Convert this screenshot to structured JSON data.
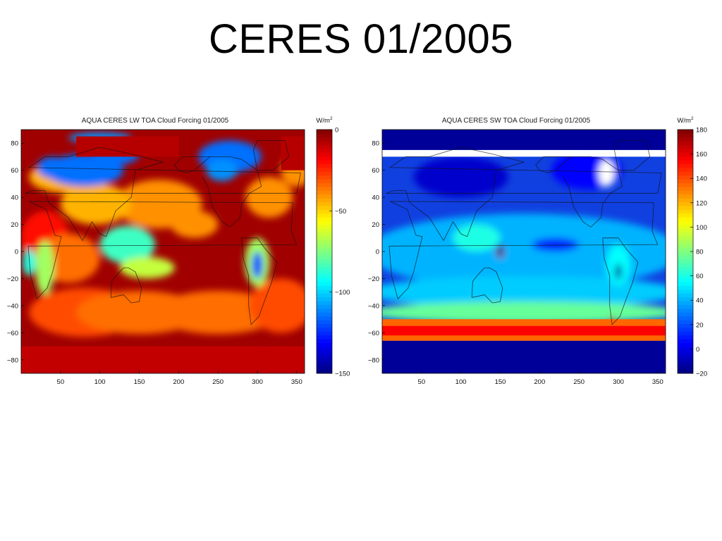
{
  "slide": {
    "title": "CERES 01/2005"
  },
  "chart_data": [
    {
      "type": "heatmap",
      "title": "AQUA CERES LW TOA Cloud Forcing 01/2005",
      "xlabel": "",
      "ylabel": "",
      "x_ticks": [
        50,
        100,
        150,
        200,
        250,
        300,
        350
      ],
      "y_ticks": [
        80,
        60,
        40,
        20,
        0,
        -20,
        -40,
        -60,
        -80
      ],
      "y_tick_labels": [
        "80",
        "60",
        "40",
        "20",
        "0",
        "−20",
        "−40",
        "−60",
        "−80"
      ],
      "xlim": [
        0,
        360
      ],
      "ylim": [
        -90,
        90
      ],
      "colorbar": {
        "unit_base": "W/m",
        "unit_exp": "2",
        "range": [
          -150,
          0
        ],
        "ticks": [
          0,
          -50,
          -100,
          -150
        ],
        "tick_labels": [
          "0",
          "−50",
          "−100",
          "−150"
        ],
        "colormap": "jet"
      },
      "background_color": "#a00000",
      "features": [
        {
          "kind": "ellipse",
          "lon": 30,
          "lat": 10,
          "rlon": 30,
          "rlat": 20,
          "value": -20
        },
        {
          "kind": "ellipse",
          "lon": 60,
          "lat": -5,
          "rlon": 40,
          "rlat": 18,
          "value": -35
        },
        {
          "kind": "ellipse",
          "lon": 80,
          "lat": -45,
          "rlon": 70,
          "rlat": 18,
          "value": -30
        },
        {
          "kind": "ellipse",
          "lon": 150,
          "lat": -45,
          "rlon": 80,
          "rlat": 16,
          "value": -35
        },
        {
          "kind": "ellipse",
          "lon": 250,
          "lat": -45,
          "rlon": 80,
          "rlat": 16,
          "value": -35
        },
        {
          "kind": "ellipse",
          "lon": 330,
          "lat": -40,
          "rlon": 40,
          "rlat": 20,
          "value": -30
        },
        {
          "kind": "ellipse",
          "lon": 175,
          "lat": 35,
          "rlon": 55,
          "rlat": 18,
          "value": -40
        },
        {
          "kind": "ellipse",
          "lon": 95,
          "lat": 35,
          "rlon": 45,
          "rlat": 15,
          "value": -45
        },
        {
          "kind": "ellipse",
          "lon": 315,
          "lat": 40,
          "rlon": 30,
          "rlat": 15,
          "value": -40
        },
        {
          "kind": "ellipse",
          "lon": 220,
          "lat": 20,
          "rlon": 30,
          "rlat": 10,
          "value": -40
        },
        {
          "kind": "ellipse",
          "lon": 60,
          "lat": 55,
          "rlon": 50,
          "rlat": 12,
          "value": -45
        },
        {
          "kind": "ellipse",
          "lon": 350,
          "lat": 60,
          "rlon": 20,
          "rlat": 12,
          "value": -40
        },
        {
          "kind": "ellipse",
          "lon": 135,
          "lat": 5,
          "rlon": 35,
          "rlat": 14,
          "value": -85
        },
        {
          "kind": "ellipse",
          "lon": 160,
          "lat": -12,
          "rlon": 35,
          "rlat": 8,
          "value": -65
        },
        {
          "kind": "ellipse",
          "lon": 300,
          "lat": -8,
          "rlon": 16,
          "rlat": 18,
          "value": -70
        },
        {
          "kind": "ellipse",
          "lon": 300,
          "lat": -10,
          "rlon": 7,
          "rlat": 10,
          "value": -120
        },
        {
          "kind": "ellipse",
          "lon": 30,
          "lat": -12,
          "rlon": 12,
          "rlat": 20,
          "value": -70
        },
        {
          "kind": "ellipse",
          "lon": 10,
          "lat": -8,
          "rlon": 8,
          "rlat": 10,
          "value": -90
        },
        {
          "kind": "ellipse",
          "lon": 80,
          "lat": 60,
          "rlon": 50,
          "rlat": 12,
          "value": -115
        },
        {
          "kind": "ellipse",
          "lon": 40,
          "lat": 62,
          "rlon": 20,
          "rlat": 8,
          "value": -115
        },
        {
          "kind": "ellipse",
          "lon": 120,
          "lat": 72,
          "rlon": 30,
          "rlat": 8,
          "value": -115
        },
        {
          "kind": "ellipse",
          "lon": 265,
          "lat": 70,
          "rlon": 40,
          "rlat": 12,
          "value": -115
        },
        {
          "kind": "ellipse",
          "lon": 255,
          "lat": 60,
          "rlon": 20,
          "rlat": 8,
          "value": -110
        },
        {
          "kind": "ellipse",
          "lon": 100,
          "lat": 84,
          "rlon": 40,
          "rlat": 4,
          "value": -110
        },
        {
          "kind": "ellipse",
          "lon": 180,
          "lat": -85,
          "rlon": 22,
          "rlat": 3,
          "value": -115
        },
        {
          "kind": "ellipse",
          "lon": 305,
          "lat": -77,
          "rlon": 6,
          "rlat": 3,
          "value": -110
        },
        {
          "kind": "rect",
          "lon0": 0,
          "lon1": 360,
          "lat0": -90,
          "lat1": -70,
          "value": -10
        },
        {
          "kind": "rect",
          "lon0": 70,
          "lon1": 200,
          "lat0": 70,
          "lat1": 85,
          "value": -8
        },
        {
          "kind": "rect",
          "lon0": 330,
          "lon1": 360,
          "lat0": 60,
          "lat1": 85,
          "value": -8
        }
      ]
    },
    {
      "type": "heatmap",
      "title": "AQUA CERES SW TOA Cloud Forcing 01/2005",
      "xlabel": "",
      "ylabel": "",
      "x_ticks": [
        50,
        100,
        150,
        200,
        250,
        300,
        350
      ],
      "y_ticks": [
        80,
        60,
        40,
        20,
        0,
        -20,
        -40,
        -60,
        -80
      ],
      "y_tick_labels": [
        "80",
        "60",
        "40",
        "20",
        "0",
        "−20",
        "−40",
        "−60",
        "−80"
      ],
      "xlim": [
        0,
        360
      ],
      "ylim": [
        -90,
        90
      ],
      "colorbar": {
        "unit_base": "W/m",
        "unit_exp": "2",
        "range": [
          -20,
          180
        ],
        "ticks": [
          180,
          160,
          140,
          120,
          100,
          80,
          60,
          40,
          20,
          0,
          -20
        ],
        "tick_labels": [
          "180",
          "160",
          "140",
          "120",
          "100",
          "80",
          "60",
          "40",
          "20",
          "0",
          "−20"
        ],
        "colormap": "jet"
      },
      "background_color": "#1040e0",
      "features": [
        {
          "kind": "ellipse",
          "lon": 180,
          "lat": 0,
          "rlon": 200,
          "rlat": 28,
          "value": 40
        },
        {
          "kind": "ellipse",
          "lon": 180,
          "lat": -30,
          "rlon": 200,
          "rlat": 12,
          "value": 45
        },
        {
          "kind": "ellipse",
          "lon": 180,
          "lat": -45,
          "rlon": 200,
          "rlat": 8,
          "value": 75
        },
        {
          "kind": "rect",
          "lon0": 0,
          "lon1": 360,
          "lat0": -66,
          "lat1": -50,
          "value": 135
        },
        {
          "kind": "rect",
          "lon0": 0,
          "lon1": 360,
          "lat0": -62,
          "lat1": -55,
          "value": 155
        },
        {
          "kind": "ellipse",
          "lon": 120,
          "lat": 10,
          "rlon": 30,
          "rlat": 10,
          "value": 60
        },
        {
          "kind": "ellipse",
          "lon": 300,
          "lat": -10,
          "rlon": 15,
          "rlat": 15,
          "value": 55
        },
        {
          "kind": "ellipse",
          "lon": 220,
          "lat": 5,
          "rlon": 30,
          "rlat": 5,
          "value": 10
        },
        {
          "kind": "ellipse",
          "lon": 150,
          "lat": 0,
          "rlon": 5,
          "rlat": 5,
          "value": 180
        },
        {
          "kind": "ellipse",
          "lon": 300,
          "lat": -15,
          "rlon": 4,
          "rlat": 6,
          "value": -15
        },
        {
          "kind": "ellipse",
          "lon": 150,
          "lat": 2,
          "rlon": 3,
          "rlat": 4,
          "value": -15
        },
        {
          "kind": "ellipse",
          "lon": 293,
          "lat": -52,
          "rlon": 4,
          "rlat": 4,
          "value": 175
        },
        {
          "kind": "rect",
          "lon0": 0,
          "lon1": 360,
          "lat0": -90,
          "lat1": -66,
          "value": -15
        },
        {
          "kind": "rect",
          "lon0": 0,
          "lon1": 360,
          "lat0": 70,
          "lat1": 75,
          "value": "nodata"
        },
        {
          "kind": "rect",
          "lon0": 0,
          "lon1": 360,
          "lat0": 75,
          "lat1": 90,
          "value": -15
        },
        {
          "kind": "ellipse",
          "lon": 100,
          "lat": 55,
          "rlon": 60,
          "rlat": 15,
          "value": -5
        },
        {
          "kind": "ellipse",
          "lon": 260,
          "lat": 60,
          "rlon": 45,
          "rlat": 14,
          "value": 5
        },
        {
          "kind": "ellipse",
          "lon": 285,
          "lat": 58,
          "rlon": 10,
          "rlat": 10,
          "value": "nodata"
        },
        {
          "kind": "ellipse",
          "lon": 180,
          "lat": -80,
          "rlon": 15,
          "rlat": 2,
          "value": 170
        }
      ]
    }
  ]
}
